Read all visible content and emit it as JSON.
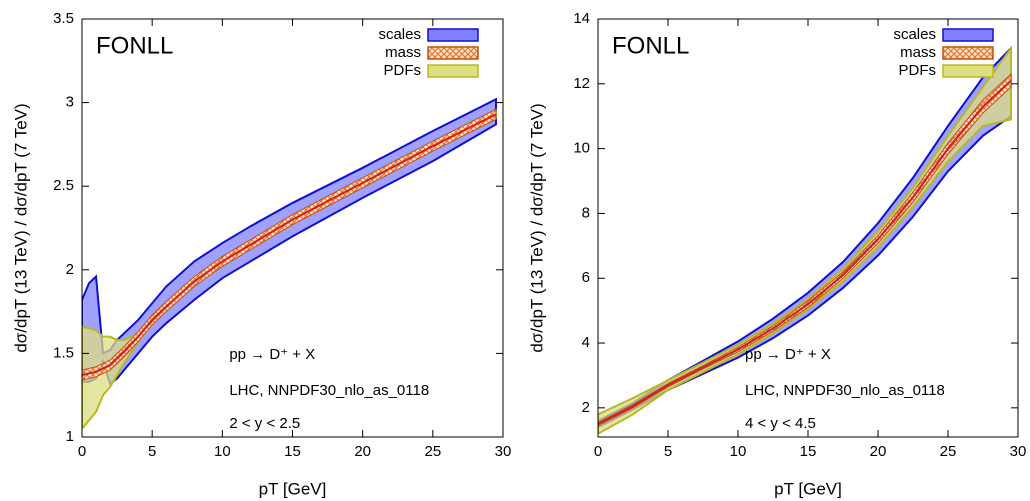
{
  "chart_data": [
    {
      "type": "band",
      "title": "FONLL",
      "xlabel": "pT [GeV]",
      "ylabel": "dσ/dpT (13 TeV) / dσ/dpT (7 TeV)",
      "annotations": [
        "pp → D⁺ + X",
        "LHC, NNPDF30_nlo_as_0118",
        "2 < y < 2.5"
      ],
      "legend": "upper right",
      "xlim": [
        0,
        30
      ],
      "ylim": [
        1,
        3.5
      ],
      "xticks": [
        0,
        5,
        10,
        15,
        20,
        25,
        30
      ],
      "yticks": [
        1,
        1.5,
        2,
        2.5,
        3,
        3.5
      ],
      "x": [
        0,
        0.5,
        1,
        1.5,
        2,
        2.5,
        3,
        4,
        5,
        6,
        8,
        10,
        12,
        15,
        20,
        25,
        29.5
      ],
      "central": [
        1.37,
        1.38,
        1.39,
        1.41,
        1.43,
        1.47,
        1.51,
        1.6,
        1.7,
        1.78,
        1.93,
        2.05,
        2.15,
        2.3,
        2.52,
        2.74,
        2.93
      ],
      "central_color": "#d02020",
      "series": [
        {
          "name": "scales",
          "color": "#8080ff",
          "edgecolor": "#1010d0",
          "hatch": false,
          "upper": [
            1.82,
            1.92,
            1.96,
            1.5,
            1.52,
            1.58,
            1.62,
            1.7,
            1.8,
            1.9,
            2.05,
            2.16,
            2.26,
            2.4,
            2.61,
            2.83,
            3.02
          ],
          "lower": [
            1.33,
            1.33,
            1.35,
            1.45,
            1.32,
            1.35,
            1.4,
            1.5,
            1.6,
            1.68,
            1.82,
            1.95,
            2.05,
            2.2,
            2.43,
            2.65,
            2.87
          ]
        },
        {
          "name": "PDFs",
          "color": "#dede80",
          "edgecolor": "#b8b820",
          "hatch": false,
          "upper": [
            1.66,
            1.65,
            1.64,
            1.6,
            1.6,
            1.58,
            1.58,
            1.62,
            1.72,
            1.79,
            1.94,
            2.06,
            2.16,
            2.31,
            2.53,
            2.75,
            2.95
          ],
          "lower": [
            1.05,
            1.1,
            1.15,
            1.25,
            1.3,
            1.37,
            1.44,
            1.57,
            1.68,
            1.77,
            1.92,
            2.04,
            2.14,
            2.29,
            2.51,
            2.73,
            2.91
          ]
        },
        {
          "name": "mass",
          "color": "#e07020",
          "edgecolor": "#c05010",
          "hatch": true,
          "upper": [
            1.4,
            1.41,
            1.42,
            1.44,
            1.46,
            1.5,
            1.54,
            1.63,
            1.73,
            1.81,
            1.96,
            2.08,
            2.18,
            2.33,
            2.55,
            2.77,
            2.96
          ],
          "lower": [
            1.34,
            1.35,
            1.36,
            1.38,
            1.4,
            1.44,
            1.48,
            1.57,
            1.67,
            1.75,
            1.9,
            2.02,
            2.12,
            2.27,
            2.49,
            2.71,
            2.9
          ]
        }
      ]
    },
    {
      "type": "band",
      "title": "FONLL",
      "xlabel": "pT [GeV]",
      "ylabel": "dσ/dpT (13 TeV) / dσ/dpT (7 TeV)",
      "annotations": [
        "pp → D⁺ + X",
        "LHC, NNPDF30_nlo_as_0118",
        "4 < y < 4.5"
      ],
      "legend": "upper right",
      "xlim": [
        0,
        30
      ],
      "ylim": [
        1.1,
        14
      ],
      "xticks": [
        0,
        5,
        10,
        15,
        20,
        25,
        30
      ],
      "yticks": [
        2,
        4,
        6,
        8,
        10,
        12,
        14
      ],
      "x": [
        0,
        2.5,
        5,
        7.5,
        10,
        12.5,
        15,
        17.5,
        20,
        22.5,
        25,
        27.5,
        29.5
      ],
      "central": [
        1.5,
        2.05,
        2.7,
        3.25,
        3.8,
        4.45,
        5.2,
        6.1,
        7.2,
        8.5,
        10.0,
        11.3,
        12.1
      ],
      "central_color": "#d02020",
      "series": [
        {
          "name": "scales",
          "color": "#8080ff",
          "edgecolor": "#1010d0",
          "hatch": false,
          "upper": [
            1.6,
            2.15,
            2.85,
            3.45,
            4.05,
            4.75,
            5.55,
            6.5,
            7.7,
            9.1,
            10.7,
            12.2,
            13.1
          ],
          "lower": [
            1.4,
            1.95,
            2.55,
            3.05,
            3.55,
            4.15,
            4.85,
            5.7,
            6.7,
            7.9,
            9.3,
            10.4,
            11.0
          ]
        },
        {
          "name": "PDFs",
          "color": "#dede80",
          "edgecolor": "#b8b820",
          "hatch": false,
          "upper": [
            1.8,
            2.3,
            2.85,
            3.4,
            3.95,
            4.6,
            5.35,
            6.3,
            7.45,
            8.8,
            10.4,
            11.9,
            13.1
          ],
          "lower": [
            1.2,
            1.8,
            2.55,
            3.1,
            3.65,
            4.3,
            5.05,
            5.9,
            6.95,
            8.2,
            9.6,
            10.7,
            10.9
          ]
        },
        {
          "name": "mass",
          "color": "#e07020",
          "edgecolor": "#c05010",
          "hatch": true,
          "upper": [
            1.55,
            2.1,
            2.75,
            3.3,
            3.87,
            4.53,
            5.3,
            6.2,
            7.32,
            8.65,
            10.17,
            11.5,
            12.3
          ],
          "lower": [
            1.45,
            2.0,
            2.65,
            3.2,
            3.73,
            4.37,
            5.1,
            6.0,
            7.08,
            8.35,
            9.83,
            11.1,
            11.9
          ]
        }
      ]
    }
  ]
}
